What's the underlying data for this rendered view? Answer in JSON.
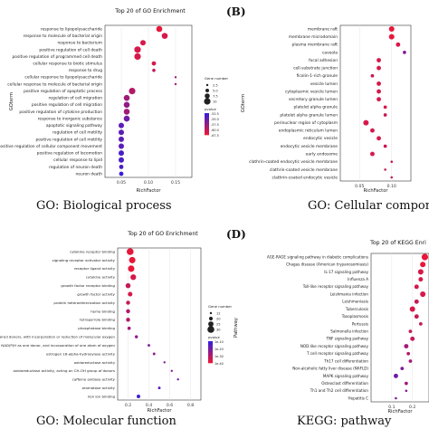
{
  "panel_tags": [
    "(B)",
    "(D)"
  ],
  "captions": [
    "GO: Biological process",
    "GO: Cellular componen",
    "GO: Molecular function",
    "KEGG: pathway"
  ],
  "colors": {
    "low": "#e8173a",
    "high": "#3a1fd6",
    "point_stroke": "#555555",
    "panel_bg": "#ffffff"
  },
  "chart_data": [
    {
      "type": "scatter",
      "title": "Top 20 of GO Enrichment",
      "xlabel": "RichFactor",
      "ylabel": "GOterm",
      "xticks": [
        "0.05",
        "0.10",
        "0.15"
      ],
      "xlim": [
        0.02,
        0.18
      ],
      "legend_count_title": "Gene number",
      "legend_count_labels": [
        "2.5",
        "5.0",
        "7.5",
        "10"
      ],
      "legend_color_title": "pvalue",
      "legend_color_labels": [
        "-52.5",
        "-55.0",
        "-57.5",
        "-60.0",
        "-67.5"
      ],
      "legend_placement": "right",
      "categories": [
        "response to lipopolysaccharide",
        "response to molecule of bacterial origin",
        "response to bacterium",
        "positive regulation of cell death",
        "positive regulation of programmed cell death",
        "cellular response to biotic stimulus",
        "response to drug",
        "cellular response to lipopolysaccharide",
        "cellular response to molecule of bacterial origin",
        "positive regulation of apoptotic process",
        "regulation of cell migration",
        "positive regulation of cell migration",
        "positive regulation of cytokine production",
        "response to inorganic substance",
        "apoptotic signaling pathway",
        "regulation of cell motility",
        "positive regulation of cell motility",
        "positive regulation of cellular component movement",
        "positive regulation of locomotion",
        "cellular response to lipid",
        "regulation of neuron death",
        "neuron death"
      ],
      "x": [
        0.12,
        0.13,
        0.09,
        0.08,
        0.08,
        0.11,
        0.11,
        0.15,
        0.15,
        0.07,
        0.06,
        0.06,
        0.06,
        0.06,
        0.05,
        0.05,
        0.05,
        0.05,
        0.05,
        0.05,
        0.05,
        0.05
      ],
      "count": [
        9,
        9,
        8,
        10,
        10,
        6,
        4,
        2,
        2,
        10,
        9,
        9,
        9,
        9,
        8,
        8,
        8,
        8,
        8,
        8,
        6,
        6
      ],
      "color_value": [
        0.0,
        0.1,
        0.1,
        0.1,
        0.1,
        0.1,
        0.2,
        0.4,
        0.4,
        0.3,
        0.4,
        0.5,
        0.4,
        0.7,
        0.8,
        0.8,
        0.8,
        0.8,
        0.9,
        0.9,
        0.9,
        1.0
      ]
    },
    {
      "type": "scatter",
      "title": "",
      "xlabel": "RichFactor",
      "ylabel": "GOterm",
      "xticks": [
        "0.05",
        "0.10"
      ],
      "xlim": [
        0.02,
        0.13
      ],
      "categories": [
        "membrane raft",
        "membrane microdomain",
        "plasma membrane raft",
        "caveola",
        "focal adhesion",
        "cell-substrate junction",
        "ficolin-1-rich granule",
        "vesicle lumen",
        "cytoplasmic vesicle lumen",
        "secretory granule lumen",
        "platelet alpha granule",
        "platelet alpha granule lumen",
        "perinuclear region of cytoplasm",
        "endoplasmic reticulum lumen",
        "endocytic vesicle",
        "endocytic vesicle membrane",
        "early endosome",
        "clathrin-coated endocytic vesicle membrane",
        "clathrin-coated vesicle membrane",
        "clathrin-coated endocytic vesicle"
      ],
      "x": [
        0.1,
        0.1,
        0.11,
        0.12,
        0.08,
        0.08,
        0.07,
        0.08,
        0.08,
        0.08,
        0.09,
        0.09,
        0.06,
        0.07,
        0.08,
        0.09,
        0.07,
        0.1,
        0.09,
        0.1
      ],
      "count": [
        7,
        7,
        6,
        5,
        6,
        6,
        5,
        6,
        6,
        6,
        5,
        5,
        7,
        6,
        6,
        5,
        6,
        4,
        4,
        4
      ],
      "color_value": [
        0.0,
        0.0,
        0.1,
        0.6,
        0.1,
        0.1,
        0.2,
        0.1,
        0.1,
        0.1,
        0.1,
        0.2,
        0.1,
        0.1,
        0.1,
        0.2,
        0.1,
        0.2,
        0.2,
        0.2
      ]
    },
    {
      "type": "scatter",
      "title": "Top 20 of GO Enrichment",
      "xlabel": "RichFactor",
      "ylabel": "",
      "xticks": [
        "0.2",
        "0.4",
        "0.6",
        "0.8"
      ],
      "xlim": [
        0.1,
        0.9
      ],
      "legend_count_title": "Gene number",
      "legend_count_labels": [
        "12",
        "20",
        "25",
        "30"
      ],
      "legend_color_title": "pvalue",
      "legend_color_labels": [
        "1e-10",
        "1e-20",
        "1e-30",
        "1e-40"
      ],
      "legend_placement": "right",
      "categories": [
        "cytokine receptor binding",
        "signaling receptor activator activity",
        "receptor ligand activity",
        "cytokine activity",
        "growth factor receptor binding",
        "growth factor activity",
        "protein heterodimerization activity",
        "heme binding",
        "tetrapyrrole binding",
        "phosphatase binding",
        "oxidoreductase activity, acting on paired donors, with incorporation or reduction of molecular oxygen",
        "oxidoreductase activity, acting on paired donors, with incorporation or reduction of molecular oxygen, NAD(P)H as one donor, and incorporation of one atom of oxygen",
        "estrogen 16-alpha-hydroxylase activity",
        "oxidoreductase activity",
        "oxidoreductase activity, acting on CH-OH group of donors",
        "caffeine oxidase activity",
        "aromatase activity",
        "iron ion binding"
      ],
      "x": [
        0.22,
        0.24,
        0.23,
        0.25,
        0.2,
        0.22,
        0.2,
        0.2,
        0.2,
        0.21,
        0.28,
        0.4,
        0.45,
        0.55,
        0.62,
        0.68,
        0.5,
        0.3
      ],
      "count": [
        30,
        28,
        28,
        25,
        22,
        20,
        18,
        18,
        18,
        15,
        14,
        12,
        12,
        10,
        10,
        10,
        12,
        16
      ],
      "color_value": [
        0.0,
        0.0,
        0.0,
        0.1,
        0.2,
        0.1,
        0.2,
        0.3,
        0.3,
        0.4,
        0.5,
        0.6,
        0.5,
        0.6,
        0.6,
        0.7,
        0.8,
        1.0
      ]
    },
    {
      "type": "scatter",
      "title": "Top 20 of KEGG Enri",
      "xlabel": "RichFactor",
      "ylabel": "Pathway",
      "xticks": [
        "0.1",
        "0.2"
      ],
      "xlim": [
        0.0,
        0.28
      ],
      "categories": [
        "AGE-RAGE signaling pathway in diabetic complications",
        "Chagas disease (American trypanosomiasis)",
        "IL-17 signaling pathway",
        "Influenza A",
        "Toll-like receptor signaling pathway",
        "Leishmania infection",
        "Leishmaniasis",
        "Tuberculosis",
        "Toxoplasmosis",
        "Pertussis",
        "Salmonella infection",
        "TNF signaling pathway",
        "NOD-like receptor signaling pathway",
        "T cell receptor signaling pathway",
        "Th17 cell differentiation",
        "Non-alcoholic fatty liver disease (NAFLD)",
        "MAPK signaling pathway",
        "Osteoclast differentiation",
        "Th1 and Th2 cell differentiation",
        "Hepatitis C"
      ],
      "x": [
        0.26,
        0.25,
        0.24,
        0.24,
        0.22,
        0.25,
        0.22,
        0.2,
        0.22,
        0.24,
        0.19,
        0.2,
        0.17,
        0.18,
        0.19,
        0.15,
        0.12,
        0.17,
        0.17,
        0.12
      ],
      "count": [
        8,
        7,
        7,
        6,
        6,
        7,
        6,
        7,
        6,
        5,
        5,
        6,
        6,
        5,
        5,
        5,
        6,
        5,
        4,
        4
      ],
      "color_value": [
        0.0,
        0.0,
        0.1,
        0.1,
        0.1,
        0.1,
        0.2,
        0.1,
        0.2,
        0.2,
        0.2,
        0.2,
        0.4,
        0.3,
        0.4,
        0.6,
        0.7,
        0.4,
        0.6,
        0.6
      ]
    }
  ]
}
